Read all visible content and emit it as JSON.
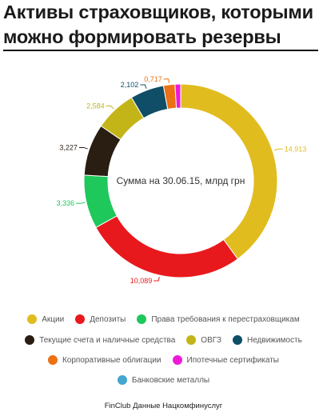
{
  "header": {
    "title_line1": "Активы страховщиков, которыми",
    "title_line2": "можно формировать резервы"
  },
  "chart_data": {
    "type": "pie",
    "donut": true,
    "center_label": "Сумма на 30.06.15, млрд грн",
    "series": [
      {
        "name": "Акции",
        "value": 14.913,
        "label": "14,913",
        "color": "#e1bc1f"
      },
      {
        "name": "Депозиты",
        "value": 10.089,
        "label": "10,089",
        "color": "#e8191c"
      },
      {
        "name": "Права требования к перестраховщикам",
        "value": 3.336,
        "label": "3,336",
        "color": "#1ec85a"
      },
      {
        "name": "Текущие счета и наличные средства",
        "value": 3.227,
        "label": "3,227",
        "color": "#2a1d12"
      },
      {
        "name": "ОВГЗ",
        "value": 2.584,
        "label": "2,584",
        "color": "#c3b518"
      },
      {
        "name": "Недвижимость",
        "value": 2.102,
        "label": "2,102",
        "color": "#0f4e66"
      },
      {
        "name": "Корпоративные облигации",
        "value": 0.717,
        "label": "0,717",
        "color": "#ec7014"
      },
      {
        "name": "Ипотечные сертификаты",
        "value": 0.35,
        "label": "",
        "color": "#ee1ad8"
      },
      {
        "name": "Банковские металлы",
        "value": 0.0,
        "label": "",
        "color": "#45a6cf"
      }
    ],
    "legend_placement": "bottom"
  },
  "legend_rows": [
    [
      0,
      1,
      2
    ],
    [
      3,
      4,
      5
    ],
    [
      6,
      7
    ],
    [
      8
    ]
  ],
  "source": {
    "brand": "FinClub",
    "text": "Данные Нацкомфинуслуг"
  }
}
